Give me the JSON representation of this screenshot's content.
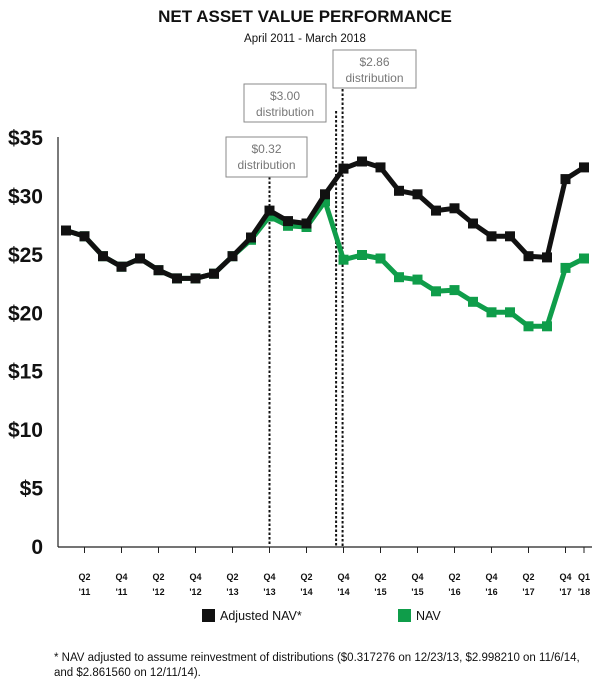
{
  "chart_data": {
    "type": "line",
    "title": "NET ASSET VALUE PERFORMANCE",
    "subtitle": "April 2011 - March 2018",
    "ylim": [
      0,
      35
    ],
    "yticks": [
      "0",
      "$5",
      "$10",
      "$15",
      "$20",
      "$25",
      "$30",
      "$35"
    ],
    "x": [
      "Q1 '11",
      "Q2 '11",
      "Q3 '11",
      "Q4 '11",
      "Q1 '12",
      "Q2 '12",
      "Q3 '12",
      "Q4 '12",
      "Q1 '13",
      "Q2 '13",
      "Q3 '13",
      "Q4 '13",
      "Q1 '14",
      "Q2 '14",
      "Q3 '14",
      "Q4 '14",
      "Q1 '15",
      "Q2 '15",
      "Q3 '15",
      "Q4 '15",
      "Q1 '16",
      "Q2 '16",
      "Q3 '16",
      "Q4 '16",
      "Q1 '17",
      "Q2 '17",
      "Q3 '17",
      "Q4 '17",
      "Q1 '18"
    ],
    "xtick_labels": [
      {
        "index": 1,
        "q": "Q2",
        "y": "'11"
      },
      {
        "index": 3,
        "q": "Q4",
        "y": "'11"
      },
      {
        "index": 5,
        "q": "Q2",
        "y": "'12"
      },
      {
        "index": 7,
        "q": "Q4",
        "y": "'12"
      },
      {
        "index": 9,
        "q": "Q2",
        "y": "'13"
      },
      {
        "index": 11,
        "q": "Q4",
        "y": "'13"
      },
      {
        "index": 13,
        "q": "Q2",
        "y": "'14"
      },
      {
        "index": 15,
        "q": "Q4",
        "y": "'14"
      },
      {
        "index": 17,
        "q": "Q2",
        "y": "'15"
      },
      {
        "index": 19,
        "q": "Q4",
        "y": "'15"
      },
      {
        "index": 21,
        "q": "Q2",
        "y": "'16"
      },
      {
        "index": 23,
        "q": "Q4",
        "y": "'16"
      },
      {
        "index": 25,
        "q": "Q2",
        "y": "'17"
      },
      {
        "index": 27,
        "q": "Q4",
        "y": "'17"
      },
      {
        "index": 28,
        "q": "Q1",
        "y": "'18"
      }
    ],
    "series": [
      {
        "name": "NAV",
        "color": "#0f9d4a",
        "values": [
          27.0,
          26.5,
          24.8,
          23.9,
          24.6,
          23.6,
          22.9,
          22.9,
          23.3,
          24.8,
          26.2,
          28.2,
          27.4,
          27.3,
          29.5,
          24.5,
          24.9,
          24.6,
          23.0,
          22.8,
          21.8,
          21.9,
          20.9,
          20.0,
          20.0,
          18.8,
          18.8,
          23.8,
          24.6
        ]
      },
      {
        "name": "Adjusted NAV*",
        "color": "#111111",
        "values": [
          27.0,
          26.5,
          24.8,
          23.9,
          24.6,
          23.6,
          22.9,
          22.9,
          23.3,
          24.8,
          26.4,
          28.7,
          27.8,
          27.6,
          30.1,
          32.3,
          32.9,
          32.4,
          30.4,
          30.1,
          28.7,
          28.9,
          27.6,
          26.5,
          26.5,
          24.8,
          24.7,
          31.4,
          32.4
        ]
      }
    ],
    "distributions": [
      {
        "x_index": 11,
        "amount": "$0.32",
        "label": "distribution"
      },
      {
        "x_index": 14.6,
        "amount": "$3.00",
        "label": "distribution"
      },
      {
        "x_index": 14.95,
        "amount": "$2.86",
        "label": "distribution"
      }
    ],
    "legend": [
      {
        "label": "Adjusted NAV*",
        "color": "#111111"
      },
      {
        "label": "NAV",
        "color": "#0f9d4a"
      }
    ],
    "legend_position": "bottom",
    "grid": false
  },
  "footnote": "* NAV adjusted to assume reinvestment of distributions ($0.317276 on 12/23/13, $2.998210 on 11/6/14, and $2.861560 on 12/11/14)."
}
